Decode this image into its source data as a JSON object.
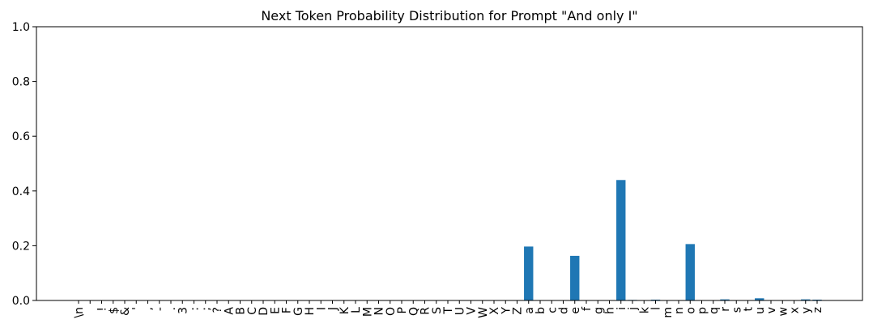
{
  "chart_data": {
    "type": "bar",
    "title": "Next Token Probability Distribution for Prompt \"And only I\"",
    "xlabel": "",
    "ylabel": "",
    "ylim": [
      0,
      1.0
    ],
    "yticks": [
      "0.0",
      "0.2",
      "0.4",
      "0.6",
      "0.8",
      "1.0"
    ],
    "grid": false,
    "bar_color": "#1f77b4",
    "categories": [
      "\\n",
      " ",
      "!",
      "$",
      "&",
      "'",
      ",",
      "-",
      ".",
      "3",
      ":",
      ";",
      "?",
      "A",
      "B",
      "C",
      "D",
      "E",
      "F",
      "G",
      "H",
      "I",
      "J",
      "K",
      "L",
      "M",
      "N",
      "O",
      "P",
      "Q",
      "R",
      "S",
      "T",
      "U",
      "V",
      "W",
      "X",
      "Y",
      "Z",
      "a",
      "b",
      "c",
      "d",
      "e",
      "f",
      "g",
      "h",
      "i",
      "j",
      "k",
      "l",
      "m",
      "n",
      "o",
      "p",
      "q",
      "r",
      "s",
      "t",
      "u",
      "v",
      "w",
      "x",
      "y",
      "z"
    ],
    "values": [
      0,
      0,
      0,
      0,
      0,
      0,
      0,
      0,
      0,
      0,
      0,
      0,
      0,
      0,
      0,
      0,
      0,
      0,
      0,
      0,
      0,
      0,
      0,
      0,
      0,
      0,
      0,
      0,
      0,
      0,
      0,
      0,
      0,
      0,
      0,
      0,
      0,
      0,
      0,
      0.197,
      0,
      0,
      0,
      0.163,
      0,
      0,
      0,
      0.44,
      0.002,
      0,
      0.003,
      0,
      0,
      0.206,
      0,
      0.001,
      0.004,
      0,
      0,
      0.008,
      0,
      0,
      0,
      0.004,
      0.003
    ]
  }
}
